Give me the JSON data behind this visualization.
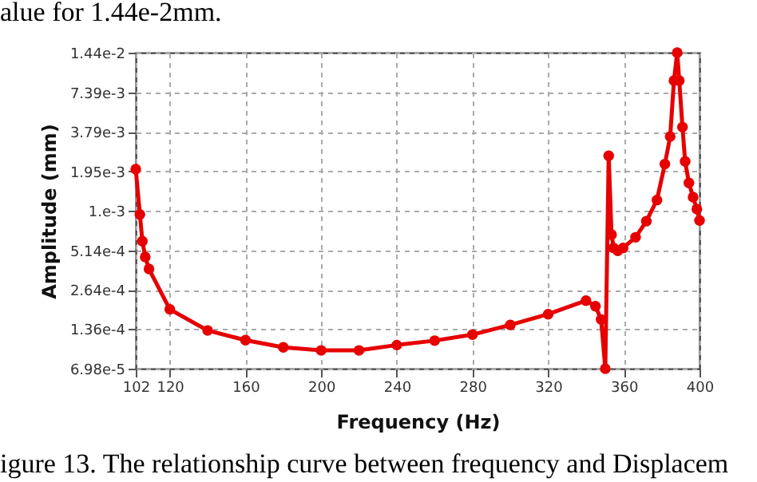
{
  "chart_data": {
    "type": "line",
    "xlabel": "Frequency (Hz)",
    "ylabel": "Amplitude (mm)",
    "annotations": [
      "alue for 1.44e-2mm.",
      "igure 13. The relationship curve between frequency and Displacem"
    ],
    "x": [
      102,
      104.2,
      105.5,
      107,
      109,
      120,
      140,
      160,
      180,
      200,
      220,
      240,
      260,
      280,
      300,
      320,
      340,
      345,
      348,
      350.2,
      352,
      353.5,
      354.6,
      356.8,
      359.6,
      366.2,
      371.9,
      377.5,
      381.7,
      384.5,
      386.5,
      388.2,
      389.3,
      391,
      392.4,
      394.4,
      396.6,
      398.6,
      400
    ],
    "series": [
      {
        "color": "#e60000",
        "values": [
          0.00202,
          0.00094,
          0.0006,
          0.00046,
          0.000375,
          0.00019,
          0.000133,
          0.000113,
          0.0001,
          9.5e-05,
          9.5e-05,
          0.000104,
          0.000112,
          0.000124,
          0.000146,
          0.000175,
          0.00022,
          0.0002,
          0.00016,
          6.98e-05,
          0.00253,
          0.00067,
          0.000535,
          0.00051,
          0.000535,
          0.00064,
          0.00084,
          0.0012,
          0.0022,
          0.0035,
          0.009,
          0.0144,
          0.009,
          0.0041,
          0.0023,
          0.0016,
          0.00126,
          0.00103,
          0.00085
        ]
      }
    ],
    "xlim": [
      102,
      400
    ],
    "xticks": [
      102,
      120,
      160,
      200,
      240,
      280,
      320,
      360,
      400
    ],
    "ylim": [
      6.98e-05,
      0.0144
    ],
    "yticks": [
      {
        "value": 6.98e-05,
        "label": "6.98e-5"
      },
      {
        "value": 0.000136,
        "label": "1.36e-4"
      },
      {
        "value": 0.000264,
        "label": "2.64e-4"
      },
      {
        "value": 0.000514,
        "label": "5.14e-4"
      },
      {
        "value": 0.001,
        "label": "1.e-3"
      },
      {
        "value": 0.00195,
        "label": "1.95e-3"
      },
      {
        "value": 0.00379,
        "label": "3.79e-3"
      },
      {
        "value": 0.00739,
        "label": "7.39e-3"
      },
      {
        "value": 0.0144,
        "label": "1.44e-2"
      }
    ],
    "log": true,
    "grid": true,
    "marker": "circle",
    "line_style": "solid"
  }
}
